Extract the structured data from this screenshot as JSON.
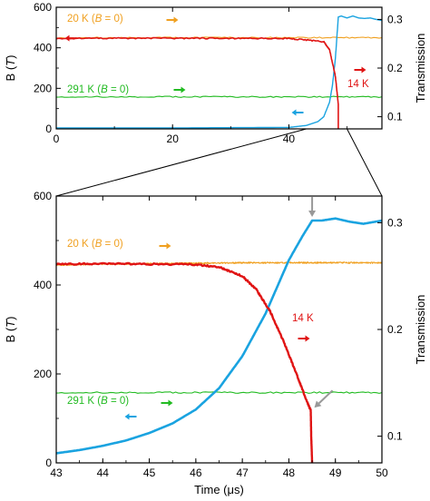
{
  "colors": {
    "room": "#22bb22",
    "warm": "#f0a020",
    "cold": "#e01414",
    "trans": "#1aa3e0",
    "arrow": "#999999"
  },
  "chart_data": [
    {
      "type": "line",
      "panel": "top",
      "xlim": [
        0,
        56
      ],
      "ylim": [
        0,
        600
      ],
      "y2lim": [
        0.075,
        0.325
      ],
      "xticks": [
        "0",
        "20",
        "40"
      ],
      "xtick_values": [
        0,
        20,
        40
      ],
      "yticks": [
        "0",
        "200",
        "400",
        "600"
      ],
      "ytick_values": [
        0,
        200,
        400,
        600
      ],
      "y2ticks": [
        "0.1",
        "0.2",
        "0.3"
      ],
      "y2tick_values": [
        0.1,
        0.2,
        0.3
      ],
      "ylabel_main": "B (",
      "ylabel_sym": "T",
      "ylabel_end": ")",
      "y2label": "Transmission",
      "series": [
        {
          "key": "room",
          "label_pre": "291 K (",
          "label_sym": "B",
          "label_post": " = 0)",
          "axis": "left",
          "x": [
            0,
            56
          ],
          "y": [
            158,
            158
          ]
        },
        {
          "key": "warm",
          "label_pre": "20 K (",
          "label_sym": "B",
          "label_post": " = 0)",
          "axis": "left",
          "x": [
            0,
            56
          ],
          "y": [
            450,
            450
          ]
        },
        {
          "key": "cold",
          "label": "14 K",
          "axis": "left",
          "x": [
            0,
            10,
            20,
            30,
            40,
            46,
            47,
            48,
            48.5,
            48.5
          ],
          "y": [
            446,
            447,
            447,
            447,
            446,
            430,
            390,
            260,
            120,
            0
          ]
        },
        {
          "key": "trans",
          "axis": "right",
          "x": [
            0,
            20,
            40,
            43,
            45,
            46,
            47,
            47.5,
            48,
            48.5,
            49,
            50,
            51,
            52,
            53,
            54,
            55,
            56
          ],
          "y": [
            0.077,
            0.077,
            0.078,
            0.082,
            0.09,
            0.1,
            0.13,
            0.165,
            0.22,
            0.305,
            0.307,
            0.303,
            0.307,
            0.303,
            0.302,
            0.303,
            0.3,
            0.298
          ]
        }
      ]
    },
    {
      "type": "line",
      "panel": "bottom",
      "xlim": [
        43,
        50
      ],
      "ylim": [
        0,
        600
      ],
      "y2lim": [
        0.075,
        0.325
      ],
      "xticks": [
        "43",
        "44",
        "45",
        "46",
        "47",
        "48",
        "49",
        "50"
      ],
      "xtick_values": [
        43,
        44,
        45,
        46,
        47,
        48,
        49,
        50
      ],
      "yticks": [
        "0",
        "200",
        "400",
        "600"
      ],
      "ytick_values": [
        0,
        200,
        400,
        600
      ],
      "y2ticks": [
        "0.1",
        "0.2",
        "0.3"
      ],
      "y2tick_values": [
        0.1,
        0.2,
        0.3
      ],
      "xlabel": "Time (μs)",
      "ylabel_main": "B (",
      "ylabel_sym": "T",
      "ylabel_end": ")",
      "y2label": "Transmission",
      "series": [
        {
          "key": "room",
          "label_pre": "291 K (",
          "label_sym": "B",
          "label_post": " = 0)",
          "axis": "left",
          "x": [
            43,
            50
          ],
          "y": [
            158,
            158
          ]
        },
        {
          "key": "warm",
          "label_pre": "20 K (",
          "label_sym": "B",
          "label_post": " = 0)",
          "axis": "left",
          "x": [
            43,
            44,
            45,
            46,
            47,
            48,
            49,
            50
          ],
          "y": [
            445,
            447,
            448,
            449,
            450,
            450,
            450,
            450
          ]
        },
        {
          "key": "cold",
          "label": "14 K",
          "axis": "left",
          "x": [
            43,
            44,
            45,
            46,
            46.5,
            47,
            47.3,
            47.6,
            47.9,
            48.2,
            48.4,
            48.47,
            48.48,
            48.5
          ],
          "y": [
            447,
            448,
            447,
            446,
            440,
            420,
            390,
            340,
            270,
            190,
            135,
            118,
            60,
            0
          ]
        },
        {
          "key": "trans",
          "axis": "right",
          "x": [
            43,
            43.5,
            44,
            44.5,
            45,
            45.5,
            46,
            46.5,
            47,
            47.5,
            48,
            48.3,
            48.5,
            48.7,
            49,
            49.3,
            49.6,
            50
          ],
          "y": [
            0.084,
            0.087,
            0.091,
            0.096,
            0.103,
            0.112,
            0.125,
            0.145,
            0.175,
            0.215,
            0.265,
            0.288,
            0.302,
            0.302,
            0.304,
            0.301,
            0.299,
            0.302
          ]
        }
      ]
    }
  ]
}
